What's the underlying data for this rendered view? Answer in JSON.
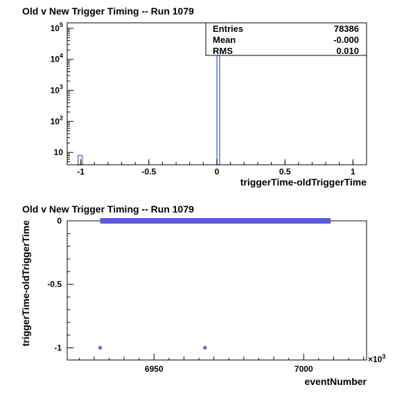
{
  "chart_data": [
    {
      "type": "histogram",
      "title": "Old v New Trigger Timing -- Run 1079",
      "xlabel": "triggerTime-oldTriggerTime",
      "ylabel": "",
      "log_y": true,
      "xlim": [
        -1.1,
        1.1
      ],
      "ylim": [
        4,
        150000
      ],
      "x_ticks": [
        {
          "v": -1,
          "label": "-1"
        },
        {
          "v": -0.5,
          "label": "-0.5"
        },
        {
          "v": 0,
          "label": "0"
        },
        {
          "v": 0.5,
          "label": "0.5"
        },
        {
          "v": 1,
          "label": "1"
        }
      ],
      "y_ticks": [
        {
          "v": 10,
          "base": "10",
          "exp": ""
        },
        {
          "v": 100,
          "base": "10",
          "exp": "2"
        },
        {
          "v": 1000,
          "base": "10",
          "exp": "3"
        },
        {
          "v": 10000,
          "base": "10",
          "exp": "4"
        },
        {
          "v": 100000,
          "base": "10",
          "exp": "5"
        }
      ],
      "bins": [
        {
          "x0": -1.02,
          "x1": -0.99,
          "count": 8
        },
        {
          "x0": 0.0,
          "x1": 0.02,
          "count": 78378
        }
      ],
      "stats": {
        "entries_label": "Entries",
        "entries_value": "78386",
        "mean_label": "Mean",
        "mean_value": "-0.000",
        "rms_label": "RMS",
        "rms_value": "0.010"
      },
      "color": "#5a78c8"
    },
    {
      "type": "scatter",
      "title": "Old v New Trigger Timing -- Run 1079",
      "xlabel": "eventNumber",
      "ylabel": "triggerTime-oldTriggerTime",
      "x_multiplier": "×10",
      "x_multiplier_exp": "3",
      "xlim": [
        6921,
        7021
      ],
      "ylim": [
        -1.02,
        0.0
      ],
      "x_ticks": [
        {
          "v": 6950,
          "label": "6950"
        },
        {
          "v": 7000,
          "label": "7000"
        }
      ],
      "y_ticks": [
        {
          "v": 0,
          "label": "0"
        },
        {
          "v": -0.5,
          "label": "-0.5"
        },
        {
          "v": -1,
          "label": "-1"
        }
      ],
      "band": {
        "x_start": 6932,
        "x_end": 7009,
        "y": 0
      },
      "points": [
        {
          "x": 6932,
          "y": -1
        },
        {
          "x": 6967,
          "y": -1
        }
      ],
      "color": "#5a5adc"
    }
  ]
}
